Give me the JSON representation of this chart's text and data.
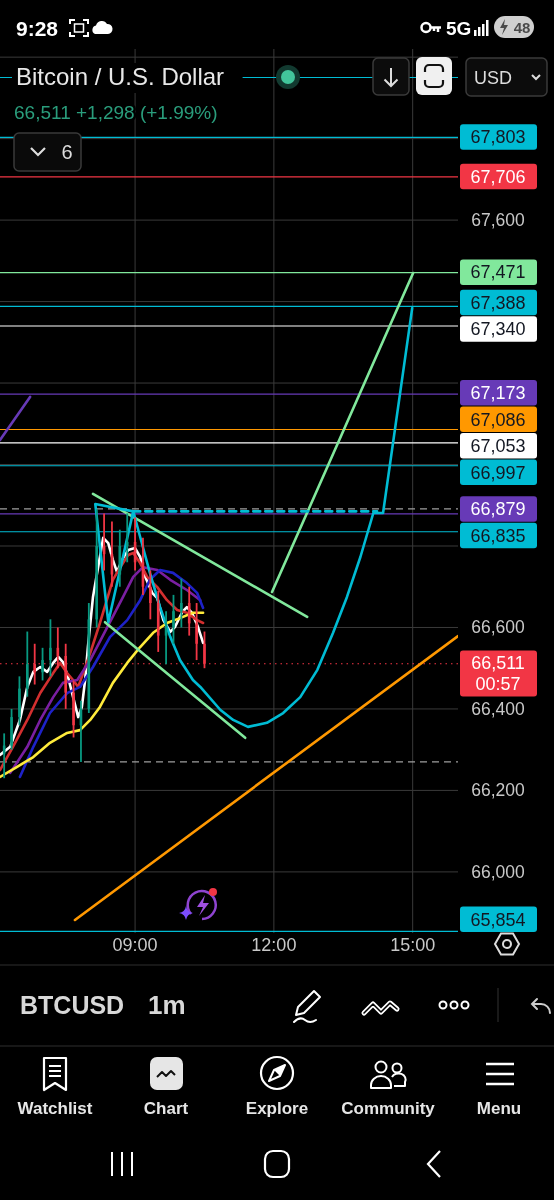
{
  "chart_data": {
    "type": "candlestick",
    "title": "Bitcoin / U.S. Dollar",
    "subtitle": "66,511 +1,298 (+1.99%)",
    "annotations": [
      "9:28",
      "5G",
      "48",
      "6",
      "USD",
      "00:57",
      "BTCUSD",
      "1m",
      "Watchlist",
      "Chart",
      "Explore",
      "Community",
      "Menu"
    ],
    "x": [
      6.17,
      6.33,
      6.5,
      6.67,
      6.83,
      7,
      7.17,
      7.33,
      7.5,
      7.67,
      7.83,
      8,
      8.17,
      8.33,
      8.5,
      8.67,
      8.83,
      9,
      9.17,
      9.33,
      9.5,
      9.67,
      9.83,
      10,
      10.17,
      10.33,
      10.5
    ],
    "ohlc": [
      [
        66290,
        66340,
        66230,
        66310
      ],
      [
        66310,
        66400,
        66300,
        66380
      ],
      [
        66380,
        66480,
        66360,
        66450
      ],
      [
        66450,
        66590,
        66430,
        66510
      ],
      [
        66510,
        66560,
        66460,
        66490
      ],
      [
        66490,
        66550,
        66470,
        66520
      ],
      [
        66520,
        66620,
        66480,
        66550
      ],
      [
        66550,
        66600,
        66500,
        66530
      ],
      [
        66530,
        66560,
        66400,
        66440
      ],
      [
        66440,
        66470,
        66330,
        66360
      ],
      [
        66360,
        66420,
        66270,
        66400
      ],
      [
        66400,
        66660,
        66390,
        66620
      ],
      [
        66620,
        66890,
        66600,
        66800
      ],
      [
        66800,
        66880,
        66740,
        66780
      ],
      [
        66780,
        66860,
        66700,
        66730
      ],
      [
        66730,
        66840,
        66700,
        66800
      ],
      [
        66800,
        66880,
        66760,
        66810
      ],
      [
        66810,
        66870,
        66740,
        66760
      ],
      [
        66760,
        66820,
        66680,
        66700
      ],
      [
        66700,
        66740,
        66620,
        66660
      ],
      [
        66660,
        66690,
        66540,
        66580
      ],
      [
        66580,
        66640,
        66510,
        66600
      ],
      [
        66600,
        66680,
        66560,
        66640
      ],
      [
        66640,
        66720,
        66600,
        66660
      ],
      [
        66660,
        66700,
        66580,
        66610
      ],
      [
        66610,
        66660,
        66520,
        66560
      ],
      [
        66560,
        66590,
        66500,
        66511
      ]
    ],
    "colors": [
      "#089981",
      "#089981",
      "#089981",
      "#089981",
      "#f23645",
      "#089981",
      "#089981",
      "#f23645",
      "#f23645",
      "#f23645",
      "#089981",
      "#089981",
      "#089981",
      "#f23645",
      "#f23645",
      "#089981",
      "#089981",
      "#f23645",
      "#f23645",
      "#f23645",
      "#f23645",
      "#089981",
      "#089981",
      "#089981",
      "#f23645",
      "#f23645",
      "#f23645"
    ],
    "series": [
      {
        "type": "line",
        "color": "#ffffff",
        "x": [
          6.08,
          6.3,
          6.51,
          6.67,
          6.8,
          6.95,
          7.1,
          7.23,
          7.34,
          7.44,
          7.55,
          7.66,
          7.77,
          7.85,
          7.92,
          7.98,
          8.09,
          8.31,
          8.42,
          8.52,
          8.61,
          8.72,
          8.85,
          9,
          9.11,
          9.22,
          9.37,
          9.48,
          9.61,
          9.76,
          9.86,
          10.02,
          10.12,
          10.23,
          10.36,
          10.47
        ],
        "values": [
          66287,
          66307,
          66373,
          66454,
          66491,
          66503,
          66491,
          66513,
          66528,
          66515,
          66479,
          66429,
          66380,
          66405,
          66471,
          66552,
          66675,
          66820,
          66807,
          66766,
          66736,
          66766,
          66790,
          66795,
          66773,
          66724,
          66685,
          66672,
          66618,
          66589,
          66601,
          66638,
          66650,
          66636,
          66601,
          66562
        ]
      },
      {
        "type": "line",
        "color": "#d32f2f",
        "x": [
          6.08,
          6.36,
          6.67,
          6.95,
          7.23,
          7.38,
          7.53,
          7.66,
          7.77,
          8.03,
          8.24,
          8.52,
          8.68,
          8.85,
          8.96,
          9.11,
          9.26,
          9.48,
          9.69,
          9.91,
          10.12,
          10.34,
          10.47
        ],
        "values": [
          66250,
          66307,
          66373,
          66439,
          66488,
          66513,
          66488,
          66471,
          66454,
          66537,
          66611,
          66717,
          66748,
          66778,
          66783,
          66758,
          66724,
          66699,
          66667,
          66643,
          66636,
          66618,
          66611
        ]
      },
      {
        "type": "line",
        "color": "#7b1fa2",
        "x": [
          6.3,
          6.67,
          6.95,
          7.23,
          7.44,
          7.75,
          8.03,
          8.4,
          8.74,
          8.96,
          9.17,
          9.48,
          9.76,
          10.12,
          10.41
        ],
        "values": [
          66243,
          66307,
          66373,
          66429,
          66464,
          66471,
          66520,
          66601,
          66675,
          66724,
          66748,
          66741,
          66717,
          66692,
          66667
        ]
      },
      {
        "type": "line",
        "color": "#1e22c8",
        "x": [
          6.51,
          6.8,
          7.16,
          7.53,
          7.81,
          8.09,
          8.46,
          8.83,
          9.11,
          9.32,
          9.54,
          9.82,
          10.12,
          10.34,
          10.47
        ],
        "values": [
          66233,
          66307,
          66390,
          66439,
          66454,
          66503,
          66577,
          66618,
          66667,
          66717,
          66741,
          66734,
          66709,
          66685,
          66648
        ]
      },
      {
        "type": "line",
        "color": "#ffeb3b",
        "x": [
          6.08,
          6.45,
          6.8,
          7.16,
          7.53,
          7.81,
          8.03,
          8.24,
          8.52,
          8.83,
          9.11,
          9.39,
          9.69,
          9.97,
          10.25,
          10.47
        ],
        "values": [
          66233,
          66258,
          66282,
          66317,
          66341,
          66348,
          66373,
          66405,
          66464,
          66513,
          66552,
          66587,
          66611,
          66623,
          66636,
          66636
        ]
      },
      {
        "type": "line",
        "color": "#81e89c",
        "x": [
          8.09,
          12.72
        ],
        "values": [
          66928,
          66626
        ]
      },
      {
        "type": "line",
        "color": "#81e89c",
        "x": [
          8.35,
          11.38
        ],
        "values": [
          66613,
          66329
        ]
      },
      {
        "type": "line",
        "color": "#81e89c",
        "x": [
          11.96,
          15.01
        ],
        "values": [
          66687,
          67470
        ]
      },
      {
        "type": "line",
        "color": "#ff9800",
        "x": [
          7.7,
          15.98
        ],
        "values": [
          65882,
          66579
        ]
      },
      {
        "type": "line",
        "color": "#673ab7",
        "x": [
          6.08,
          6.73
        ],
        "values": [
          67060,
          67166
        ]
      },
      {
        "type": "line",
        "color": "#00bcd4",
        "x": [
          8.96,
          8.14,
          8.42,
          8.96,
          9.11,
          9.32,
          9.54,
          9.76,
          9.97,
          10.25,
          10.41,
          10.84,
          11.12,
          11.44,
          11.85,
          12.2,
          12.57,
          12.94,
          13.28,
          13.58,
          13.87,
          14.15,
          14.36,
          14.99
        ],
        "values": [
          66885,
          66903,
          66613,
          66885,
          66822,
          66734,
          66650,
          66577,
          66520,
          66471,
          66454,
          66398,
          66373,
          66356,
          66366,
          66390,
          66429,
          66496,
          66587,
          66675,
          66773,
          66881,
          66881,
          67384
        ]
      },
      {
        "type": "line",
        "color": "#00bcd4",
        "line_style": "dashed",
        "x": [
          8.96,
          14.23
        ],
        "values": [
          66885,
          66885
        ]
      }
    ],
    "ref_lines": [
      {
        "axis": "y",
        "value": 67950,
        "color": "#00bcd4"
      },
      {
        "axis": "y",
        "value": 67803,
        "label": "67,803",
        "color": "#00bcd4"
      },
      {
        "axis": "y",
        "value": 67706,
        "label": "67,706",
        "color": "#f23645"
      },
      {
        "axis": "y",
        "value": 67471,
        "label": "67,471",
        "color": "#81e89c"
      },
      {
        "axis": "y",
        "value": 67388,
        "label": "67,388",
        "color": "#00bcd4"
      },
      {
        "axis": "y",
        "value": 67340,
        "label": "67,340",
        "color": "#ffffff"
      },
      {
        "axis": "y",
        "value": 67173,
        "label": "67,173",
        "color": "#673ab7"
      },
      {
        "axis": "y",
        "value": 67086,
        "label": "67,086",
        "color": "#ff9800"
      },
      {
        "axis": "y",
        "value": 67053,
        "label": "67,053",
        "color": "#ffffff"
      },
      {
        "axis": "y",
        "value": 66997,
        "label": "66,997",
        "color": "#00bcd4"
      },
      {
        "axis": "y",
        "value": 66891,
        "color": "#9e9e9e",
        "line_style": "dashed"
      },
      {
        "axis": "y",
        "value": 66879,
        "label": "66,879",
        "color": "#673ab7"
      },
      {
        "axis": "y",
        "value": 66835,
        "label": "66,835",
        "color": "#00bcd4"
      },
      {
        "axis": "y",
        "value": 66511,
        "label": "66,511",
        "color": "#f23645",
        "line_style": "dotted"
      },
      {
        "axis": "y",
        "value": 66270,
        "color": "#9e9e9e",
        "line_style": "dashed"
      },
      {
        "axis": "y",
        "value": 65854,
        "label": "65,854",
        "color": "#00bcd4"
      }
    ],
    "xlim": [
      6.08,
      15.98
    ],
    "ylim": [
      65850,
      68020
    ],
    "xticks": [
      {
        "value": 9,
        "label": "09:00"
      },
      {
        "value": 12,
        "label": "12:00"
      },
      {
        "value": 15,
        "label": "15:00"
      }
    ],
    "yticks": [
      {
        "value": 66000,
        "label": "66,000"
      },
      {
        "value": 66200,
        "label": "66,200"
      },
      {
        "value": 66400,
        "label": "66,400"
      },
      {
        "value": 66600,
        "label": "66,600"
      },
      {
        "value": 66800,
        "label": null
      },
      {
        "value": 67000,
        "label": null
      },
      {
        "value": 67200,
        "label": null
      },
      {
        "value": 67400,
        "label": null
      },
      {
        "value": 67600,
        "label": "67,600"
      },
      {
        "value": 67800,
        "label": null
      },
      {
        "value": 68000,
        "label": null
      }
    ],
    "grid": true
  }
}
